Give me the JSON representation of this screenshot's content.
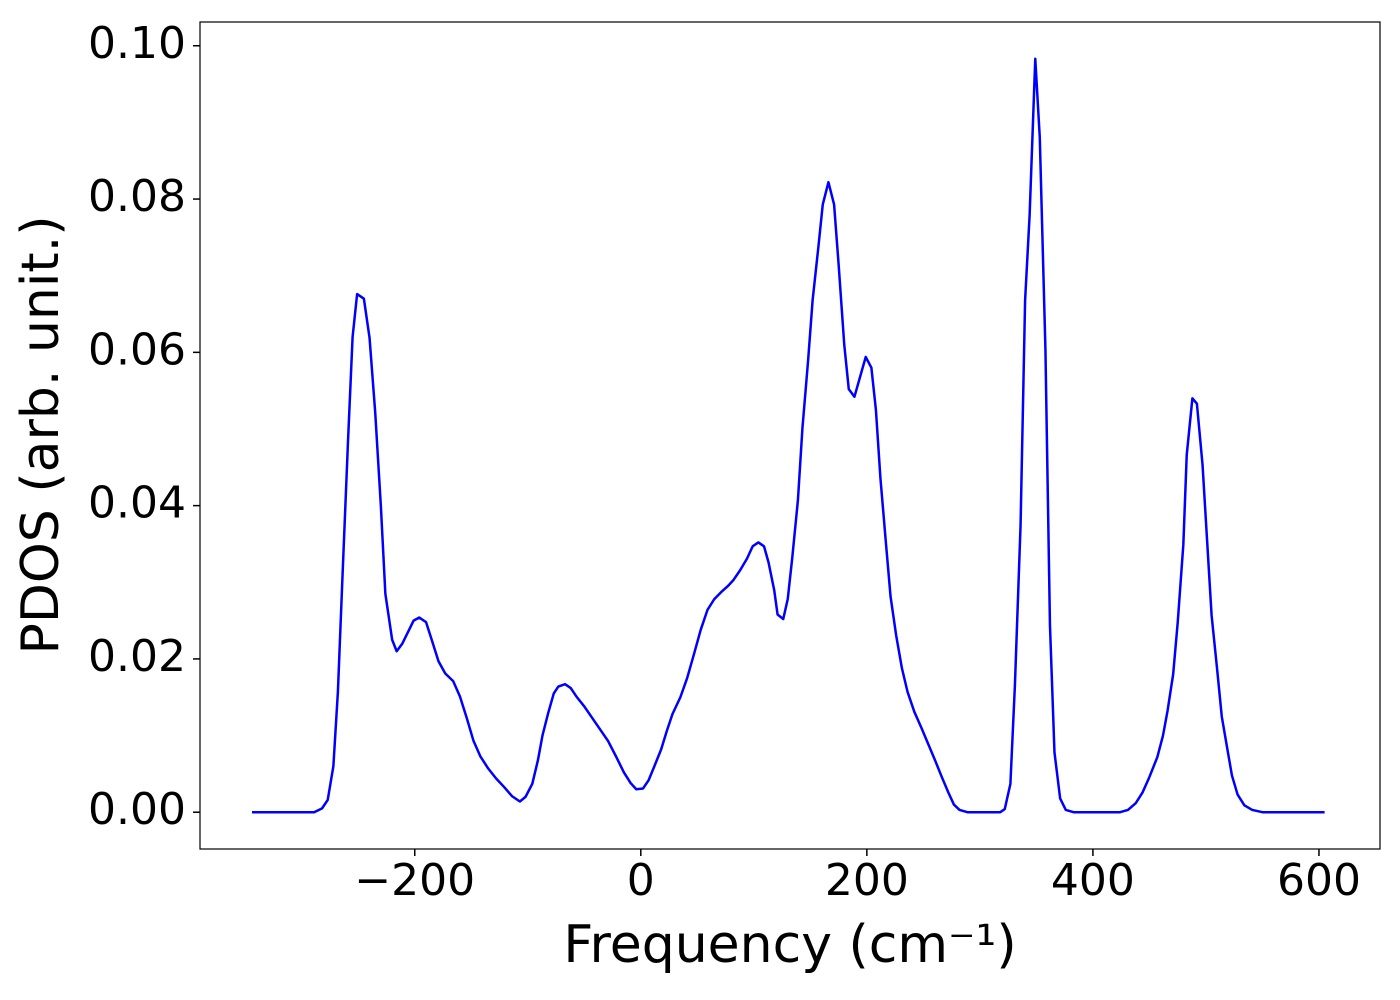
{
  "chart_data": {
    "type": "line",
    "xlabel": "Frequency (cm⁻¹)",
    "ylabel": "PDOS (arb. unit.)",
    "xlim": [
      -390,
      654
    ],
    "ylim": [
      -0.0048,
      0.1031
    ],
    "xticks": [
      {
        "value": -200,
        "label": "−200"
      },
      0,
      200,
      400,
      600
    ],
    "yticks": [
      {
        "value": 0,
        "label": "0.00"
      },
      0.02,
      0.04,
      0.06,
      0.08,
      {
        "value": 0.1,
        "label": "0.10"
      }
    ],
    "grid": false,
    "x": [
      -344,
      -289,
      -282,
      -277,
      -272,
      -268,
      -264,
      -259,
      -255,
      -251,
      -245,
      -240,
      -235,
      -230,
      -226,
      -220,
      -216,
      -211,
      -205,
      -201,
      -196,
      -190,
      -185,
      -179,
      -173,
      -166,
      -160,
      -154,
      -148,
      -142,
      -135,
      -128,
      -121,
      -114,
      -107,
      -102,
      -96,
      -91,
      -87,
      -82,
      -77,
      -73,
      -67,
      -62,
      -57,
      -50,
      -43,
      -36,
      -29,
      -22,
      -15,
      -9,
      -4,
      2,
      7,
      12,
      18,
      23,
      28,
      35,
      41,
      47,
      53,
      59,
      65,
      71,
      77,
      82,
      88,
      94,
      99,
      104,
      109,
      113,
      118,
      121,
      126,
      130,
      134,
      139,
      143,
      148,
      152,
      157,
      161,
      166,
      171,
      175,
      180,
      184,
      189,
      194,
      199,
      204,
      208,
      212,
      217,
      221,
      226,
      231,
      236,
      242,
      248,
      254,
      260,
      266,
      272,
      277,
      282,
      289,
      318,
      322,
      327,
      331,
      336,
      340,
      344,
      349,
      353,
      358,
      362,
      366,
      371,
      376,
      383,
      424,
      431,
      438,
      444,
      450,
      457,
      462,
      466,
      471,
      475,
      480,
      483,
      488,
      492,
      497,
      501,
      505,
      510,
      514,
      519,
      523,
      528,
      534,
      541,
      550,
      605
    ],
    "series": [
      {
        "name": "PDOS",
        "color": "#0000ff",
        "values": [
          0,
          0,
          0.0005,
          0.0016,
          0.006,
          0.0157,
          0.0305,
          0.0486,
          0.062,
          0.0676,
          0.067,
          0.0619,
          0.0522,
          0.04,
          0.0285,
          0.0225,
          0.021,
          0.022,
          0.0238,
          0.025,
          0.0254,
          0.0248,
          0.0225,
          0.0197,
          0.0181,
          0.0171,
          0.0151,
          0.0123,
          0.0093,
          0.0073,
          0.0057,
          0.0044,
          0.0033,
          0.0021,
          0.0014,
          0.002,
          0.0037,
          0.0068,
          0.01,
          0.0129,
          0.0155,
          0.0164,
          0.0167,
          0.0162,
          0.0151,
          0.0138,
          0.0123,
          0.0108,
          0.0093,
          0.0073,
          0.0052,
          0.0038,
          0.003,
          0.0031,
          0.0042,
          0.006,
          0.0082,
          0.0106,
          0.0128,
          0.015,
          0.0175,
          0.0206,
          0.0238,
          0.0264,
          0.0278,
          0.0287,
          0.0295,
          0.0303,
          0.0316,
          0.0331,
          0.0347,
          0.0352,
          0.0347,
          0.0326,
          0.029,
          0.0258,
          0.0252,
          0.0278,
          0.0332,
          0.0407,
          0.0501,
          0.0589,
          0.0668,
          0.0736,
          0.0793,
          0.0822,
          0.0793,
          0.0715,
          0.061,
          0.0552,
          0.0542,
          0.0568,
          0.0594,
          0.058,
          0.0525,
          0.0436,
          0.0349,
          0.0281,
          0.023,
          0.0188,
          0.0157,
          0.0131,
          0.0111,
          0.009,
          0.0069,
          0.0047,
          0.0026,
          0.001,
          0.0003,
          0,
          0,
          0.0004,
          0.0037,
          0.0166,
          0.0375,
          0.0668,
          0.0779,
          0.0983,
          0.088,
          0.0603,
          0.0244,
          0.0078,
          0.0018,
          0.0003,
          0,
          0,
          0.0003,
          0.0012,
          0.0026,
          0.0046,
          0.0072,
          0.01,
          0.0132,
          0.018,
          0.0247,
          0.0349,
          0.0466,
          0.054,
          0.0533,
          0.0453,
          0.0355,
          0.0257,
          0.0185,
          0.0125,
          0.0082,
          0.0048,
          0.0023,
          0.0009,
          0.0003,
          0,
          0
        ]
      }
    ]
  }
}
